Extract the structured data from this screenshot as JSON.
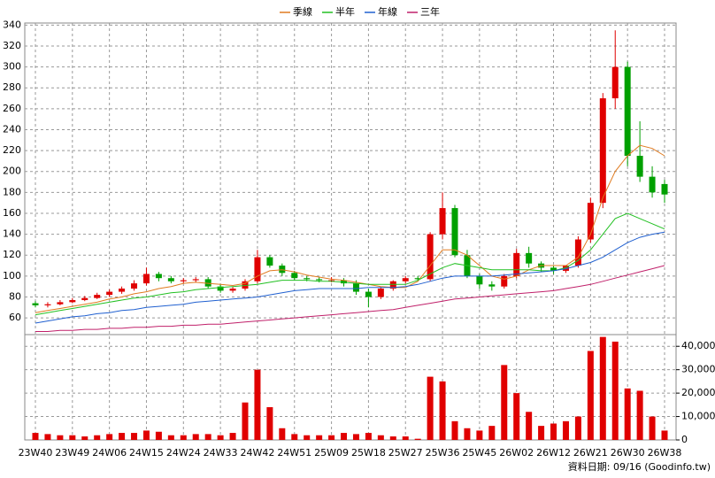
{
  "chart_data": [
    {
      "type": "candlestick",
      "categories": [
        "23W40",
        null,
        null,
        "23W49",
        null,
        null,
        "24W06",
        null,
        null,
        "24W15",
        null,
        null,
        "24W24",
        null,
        null,
        "24W33",
        null,
        null,
        "24W42",
        null,
        null,
        "24W51",
        null,
        null,
        "25W09",
        null,
        null,
        "25W18",
        null,
        null,
        "25W27",
        null,
        null,
        "25W36",
        null,
        null,
        "25W45",
        null,
        null,
        "26W02",
        null,
        null,
        "26W12",
        null,
        null,
        "26W21",
        null,
        null,
        "26W30",
        null,
        null,
        "26W38"
      ],
      "open": [
        74,
        72,
        73,
        75,
        77,
        79,
        82,
        85,
        88,
        93,
        102,
        98,
        95,
        96,
        97,
        90,
        86,
        88,
        95,
        118,
        110,
        103,
        98,
        97,
        96,
        96,
        93,
        85,
        80,
        88,
        95,
        98,
        97,
        140,
        165,
        120,
        100,
        92,
        90,
        100,
        122,
        112,
        108,
        105,
        110,
        135,
        170,
        270,
        300,
        215,
        195,
        188
      ],
      "high": [
        76,
        75,
        77,
        79,
        81,
        84,
        87,
        90,
        96,
        108,
        104,
        100,
        98,
        99,
        99,
        92,
        90,
        97,
        125,
        120,
        112,
        105,
        100,
        99,
        99,
        98,
        96,
        88,
        90,
        96,
        100,
        100,
        142,
        180,
        168,
        125,
        102,
        95,
        102,
        126,
        128,
        114,
        110,
        108,
        138,
        175,
        275,
        335,
        305,
        248,
        205,
        192
      ],
      "low": [
        70,
        70,
        72,
        74,
        76,
        78,
        80,
        83,
        86,
        91,
        95,
        93,
        93,
        94,
        88,
        84,
        84,
        86,
        93,
        108,
        100,
        96,
        95,
        94,
        94,
        90,
        82,
        70,
        78,
        86,
        93,
        95,
        95,
        135,
        118,
        98,
        88,
        86,
        88,
        98,
        108,
        104,
        102,
        103,
        108,
        132,
        165,
        260,
        205,
        190,
        175,
        170
      ],
      "close": [
        72,
        73,
        75,
        77,
        79,
        82,
        85,
        88,
        93,
        102,
        98,
        95,
        96,
        97,
        90,
        86,
        88,
        95,
        118,
        110,
        103,
        98,
        97,
        96,
        96,
        93,
        85,
        80,
        88,
        95,
        98,
        97,
        140,
        165,
        120,
        100,
        92,
        90,
        100,
        122,
        112,
        108,
        105,
        110,
        135,
        170,
        270,
        300,
        215,
        195,
        180,
        178
      ],
      "up_color": "#e00000",
      "down_color": "#00a000",
      "series": [
        {
          "name": "季線",
          "color": "#e07b20",
          "values": [
            65,
            67,
            69,
            71,
            73,
            75,
            78,
            80,
            83,
            85,
            88,
            90,
            93,
            94,
            93,
            92,
            91,
            93,
            100,
            105,
            106,
            104,
            101,
            99,
            97,
            96,
            94,
            92,
            90,
            89,
            89,
            95,
            110,
            125,
            125,
            120,
            110,
            100,
            97,
            100,
            106,
            110,
            110,
            110,
            118,
            140,
            175,
            200,
            215,
            225,
            222,
            215
          ]
        },
        {
          "name": "半年",
          "color": "#22c022",
          "values": [
            63,
            65,
            67,
            69,
            71,
            73,
            75,
            77,
            79,
            80,
            82,
            84,
            85,
            87,
            88,
            89,
            90,
            91,
            92,
            94,
            96,
            96,
            96,
            95,
            95,
            94,
            93,
            92,
            92,
            92,
            92,
            96,
            102,
            108,
            112,
            110,
            108,
            106,
            106,
            106,
            106,
            105,
            105,
            108,
            115,
            125,
            140,
            155,
            160,
            155,
            150,
            145
          ]
        },
        {
          "name": "年線",
          "color": "#2060d0",
          "values": [
            55,
            57,
            59,
            61,
            62,
            64,
            65,
            67,
            68,
            70,
            71,
            72,
            73,
            75,
            76,
            77,
            78,
            79,
            80,
            82,
            84,
            86,
            87,
            88,
            88,
            88,
            88,
            89,
            89,
            89,
            90,
            92,
            95,
            98,
            100,
            100,
            100,
            100,
            101,
            102,
            103,
            104,
            105,
            107,
            110,
            113,
            118,
            125,
            132,
            137,
            140,
            142
          ]
        },
        {
          "name": "三年",
          "color": "#c0206a",
          "values": [
            47,
            47,
            48,
            48,
            49,
            49,
            50,
            50,
            51,
            51,
            52,
            52,
            53,
            53,
            54,
            54,
            55,
            56,
            57,
            58,
            59,
            60,
            61,
            62,
            63,
            64,
            65,
            66,
            67,
            68,
            70,
            72,
            74,
            76,
            78,
            79,
            80,
            81,
            82,
            83,
            84,
            85,
            86,
            88,
            90,
            92,
            95,
            98,
            101,
            104,
            107,
            110
          ]
        }
      ],
      "ylim": [
        44,
        342
      ],
      "yticks": [
        60,
        80,
        100,
        120,
        140,
        160,
        180,
        200,
        220,
        240,
        260,
        280,
        300,
        320,
        340
      ],
      "grid": true
    },
    {
      "type": "bar",
      "color": "#e00000",
      "values": [
        3000,
        2500,
        2000,
        2000,
        1500,
        2000,
        2500,
        3000,
        3000,
        4000,
        3500,
        2000,
        2000,
        2500,
        2500,
        2000,
        3000,
        16000,
        30000,
        14000,
        5000,
        2500,
        2000,
        2000,
        2000,
        3000,
        2500,
        3000,
        2000,
        1500,
        1500,
        500,
        27000,
        25000,
        8000,
        5000,
        4000,
        6000,
        32000,
        20000,
        12000,
        6000,
        7000,
        8000,
        10000,
        38000,
        44000,
        42000,
        22000,
        21000,
        10000,
        4000
      ],
      "ylim": [
        0,
        45000
      ],
      "yticks": [
        0,
        {
          "value": 10000,
          "label": "10,000"
        },
        {
          "value": 20000,
          "label": "20,000"
        },
        {
          "value": 30000,
          "label": "30,000"
        },
        {
          "value": 40000,
          "label": "40,000"
        }
      ],
      "grid": true
    }
  ],
  "footer": "資料日期: 09/16 (Goodinfo.tw)"
}
